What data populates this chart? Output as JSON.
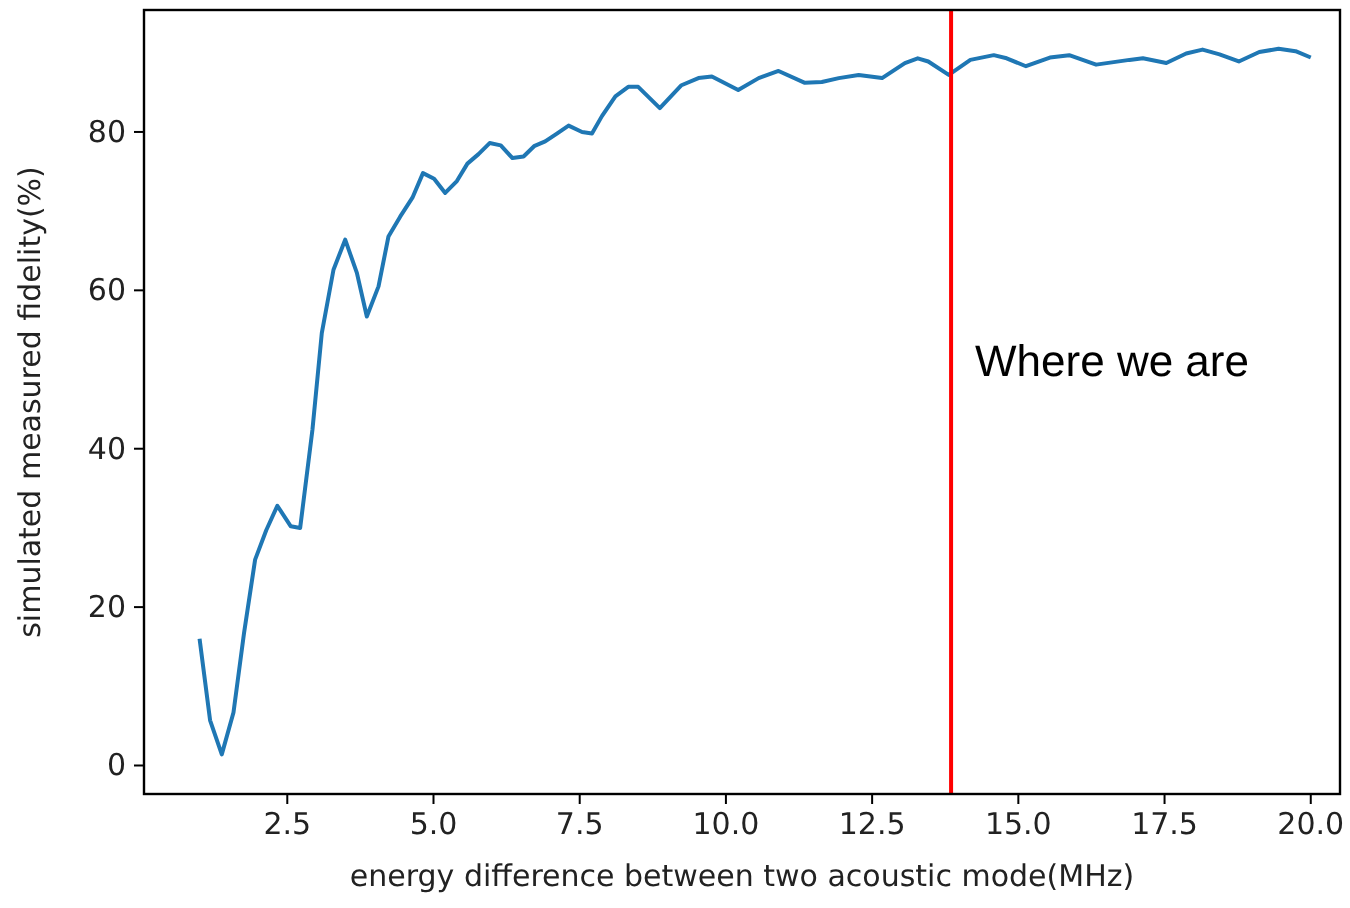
{
  "chart_data": {
    "type": "line",
    "xlabel": "energy difference between two acoustic mode(MHz)",
    "ylabel": "simulated measured fidelity(%)",
    "xlim": [
      0.05,
      20.5
    ],
    "xticks": [
      {
        "value": 2.5,
        "label": "2.5"
      },
      {
        "value": 5,
        "label": "5.0"
      },
      {
        "value": 7.5,
        "label": "7.5"
      },
      {
        "value": 10,
        "label": "10.0"
      },
      {
        "value": 12.5,
        "label": "12.5"
      },
      {
        "value": 15,
        "label": "15.0"
      },
      {
        "value": 17.5,
        "label": "17.5"
      },
      {
        "value": 20,
        "label": "20.0"
      }
    ],
    "ylim": [
      -3.6,
      95.4
    ],
    "yticks": [
      0,
      20,
      40,
      60,
      80
    ],
    "series": [
      {
        "color": "#1f77b4",
        "x": [
          1.0,
          1.18,
          1.38,
          1.58,
          1.76,
          1.95,
          2.14,
          2.33,
          2.56,
          2.72,
          2.93,
          3.09,
          3.29,
          3.49,
          3.69,
          3.86,
          4.06,
          4.23,
          4.43,
          4.64,
          4.82,
          5.01,
          5.2,
          5.4,
          5.58,
          5.77,
          5.96,
          6.15,
          6.35,
          6.54,
          6.72,
          6.91,
          7.11,
          7.31,
          7.54,
          7.71,
          7.88,
          8.11,
          8.33,
          8.5,
          8.87,
          9.24,
          9.53,
          9.76,
          10.21,
          10.56,
          10.9,
          11.35,
          11.64,
          11.93,
          12.27,
          12.67,
          13.06,
          13.28,
          13.46,
          13.81,
          14.18,
          14.58,
          14.8,
          15.13,
          15.54,
          15.87,
          16.33,
          16.9,
          17.13,
          17.53,
          17.87,
          18.15,
          18.44,
          18.77,
          19.12,
          19.45,
          19.74,
          20.0
        ],
        "values": [
          16.0,
          5.7,
          1.4,
          6.7,
          16.7,
          26.0,
          29.7,
          32.8,
          30.2,
          30.0,
          42.4,
          54.6,
          62.6,
          66.4,
          62.2,
          56.7,
          60.5,
          66.8,
          69.3,
          71.7,
          74.8,
          74.1,
          72.3,
          73.8,
          76.0,
          77.2,
          78.6,
          78.3,
          76.7,
          76.9,
          78.2,
          78.8,
          79.8,
          80.8,
          80.0,
          79.8,
          82.0,
          84.5,
          85.7,
          85.7,
          83.0,
          85.9,
          86.8,
          87.0,
          85.3,
          86.8,
          87.7,
          86.2,
          86.3,
          86.8,
          87.2,
          86.8,
          88.7,
          89.3,
          88.9,
          87.2,
          89.1,
          89.7,
          89.3,
          88.3,
          89.4,
          89.7,
          88.5,
          89.1,
          89.3,
          88.7,
          89.9,
          90.4,
          89.8,
          88.9,
          90.1,
          90.5,
          90.2,
          89.4
        ]
      }
    ],
    "ref_lines": [
      {
        "axis": "x",
        "value": 13.85,
        "label": "Where we are",
        "color": "#ff0000"
      }
    ],
    "grid": false
  }
}
